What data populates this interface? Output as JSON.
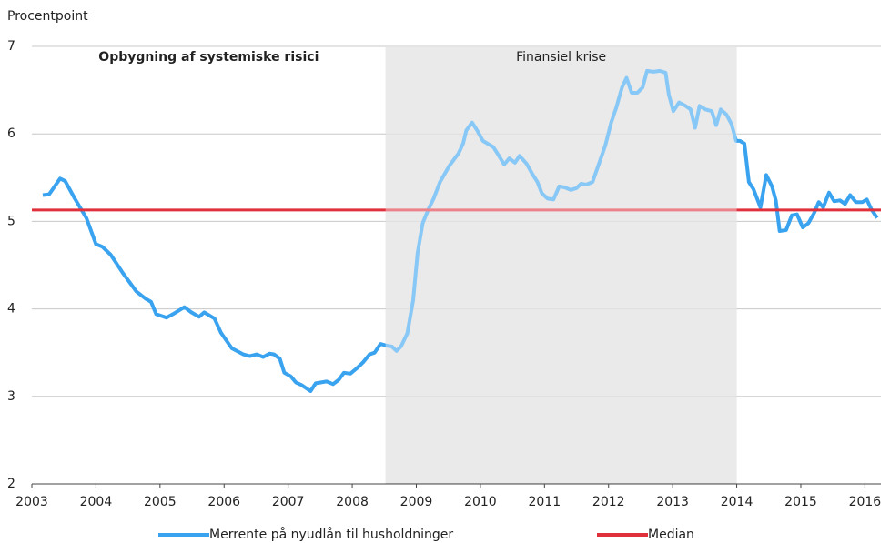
{
  "chart_data": {
    "type": "line",
    "ylabel": "Procentpoint",
    "xlim": [
      2003,
      2016.25
    ],
    "xticks": [
      2003,
      2004,
      2005,
      2006,
      2007,
      2008,
      2009,
      2010,
      2011,
      2012,
      2013,
      2014,
      2015,
      2016
    ],
    "ylim": [
      2,
      7
    ],
    "yticks": [
      2,
      3,
      4,
      5,
      6,
      7
    ],
    "grid": true,
    "legend": "bottom",
    "periods": [
      {
        "label": "Opbygning af systemiske risici",
        "xlim": [
          2003,
          2008.52
        ],
        "shaded": false
      },
      {
        "label": "Finansiel krise",
        "xlim": [
          2008.52,
          2014.0
        ],
        "shaded": true
      }
    ],
    "x": [
      2003.17,
      2003.27,
      2003.44,
      2003.52,
      2003.67,
      2003.85,
      2004.0,
      2004.1,
      2004.23,
      2004.42,
      2004.63,
      2004.77,
      2004.86,
      2004.94,
      2005.1,
      2005.2,
      2005.38,
      2005.49,
      2005.61,
      2005.69,
      2005.85,
      2005.95,
      2006.12,
      2006.3,
      2006.4,
      2006.51,
      2006.61,
      2006.71,
      2006.78,
      2006.87,
      2006.94,
      2007.04,
      2007.12,
      2007.21,
      2007.35,
      2007.43,
      2007.6,
      2007.7,
      2007.79,
      2007.87,
      2007.97,
      2008.07,
      2008.17,
      2008.27,
      2008.35,
      2008.44,
      2008.54,
      2008.62,
      2008.69,
      2008.76,
      2008.86,
      2008.95,
      2009.02,
      2009.1,
      2009.19,
      2009.27,
      2009.37,
      2009.52,
      2009.66,
      2009.73,
      2009.78,
      2009.87,
      2009.95,
      2010.04,
      2010.2,
      2010.28,
      2010.37,
      2010.45,
      2010.54,
      2010.61,
      2010.72,
      2010.82,
      2010.89,
      2010.96,
      2011.05,
      2011.14,
      2011.23,
      2011.31,
      2011.41,
      2011.5,
      2011.57,
      2011.65,
      2011.75,
      2011.85,
      2011.95,
      2012.04,
      2012.12,
      2012.21,
      2012.28,
      2012.36,
      2012.45,
      2012.53,
      2012.6,
      2012.7,
      2012.8,
      2012.89,
      2012.94,
      2013.01,
      2013.1,
      2013.2,
      2013.28,
      2013.35,
      2013.42,
      2013.51,
      2013.61,
      2013.68,
      2013.75,
      2013.84,
      2013.92,
      2013.99,
      2014.05,
      2014.12,
      2014.19,
      2014.26,
      2014.37,
      2014.46,
      2014.55,
      2014.61,
      2014.67,
      2014.77,
      2014.86,
      2014.94,
      2015.03,
      2015.12,
      2015.21,
      2015.28,
      2015.35,
      2015.44,
      2015.52,
      2015.61,
      2015.69,
      2015.77,
      2015.86,
      2015.96,
      2016.03,
      2016.1,
      2016.19
    ],
    "series": [
      {
        "name": "Merrente på nyudlån til husholdninger",
        "color": "#3aa3f0",
        "values": [
          5.3,
          5.31,
          5.49,
          5.46,
          5.26,
          5.04,
          4.74,
          4.71,
          4.62,
          4.41,
          4.2,
          4.12,
          4.08,
          3.94,
          3.9,
          3.94,
          4.02,
          3.96,
          3.91,
          3.96,
          3.89,
          3.73,
          3.55,
          3.48,
          3.46,
          3.48,
          3.45,
          3.49,
          3.48,
          3.43,
          3.27,
          3.23,
          3.16,
          3.13,
          3.06,
          3.15,
          3.17,
          3.14,
          3.19,
          3.27,
          3.26,
          3.32,
          3.39,
          3.48,
          3.5,
          3.6,
          3.58,
          3.57,
          3.52,
          3.57,
          3.72,
          4.1,
          4.64,
          4.98,
          5.14,
          5.26,
          5.45,
          5.64,
          5.78,
          5.89,
          6.04,
          6.13,
          6.04,
          5.92,
          5.85,
          5.76,
          5.65,
          5.72,
          5.67,
          5.75,
          5.66,
          5.53,
          5.45,
          5.32,
          5.26,
          5.25,
          5.4,
          5.39,
          5.36,
          5.38,
          5.43,
          5.42,
          5.45,
          5.66,
          5.87,
          6.13,
          6.3,
          6.53,
          6.64,
          6.47,
          6.47,
          6.53,
          6.72,
          6.71,
          6.72,
          6.7,
          6.45,
          6.26,
          6.36,
          6.32,
          6.28,
          6.07,
          6.32,
          6.28,
          6.26,
          6.1,
          6.28,
          6.22,
          6.11,
          5.92,
          5.92,
          5.89,
          5.45,
          5.37,
          5.16,
          5.53,
          5.4,
          5.24,
          4.89,
          4.9,
          5.07,
          5.08,
          4.93,
          4.98,
          5.1,
          5.22,
          5.16,
          5.33,
          5.23,
          5.24,
          5.2,
          5.3,
          5.22,
          5.22,
          5.25,
          5.14,
          5.04
        ]
      },
      {
        "name": "Median",
        "color": "#e0303c",
        "value": 5.13
      }
    ]
  }
}
